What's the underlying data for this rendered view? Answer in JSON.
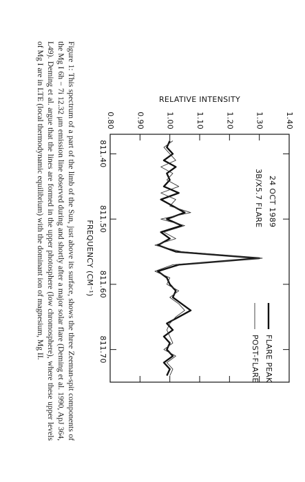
{
  "chart_data": {
    "type": "line",
    "annotations": [
      "24 OCT 1989",
      "3B/X5.7 FLARE"
    ],
    "x_label": "FREQUENCY (CM⁻¹)",
    "y_label": "RELATIVE INTENSITY",
    "x": [
      811.38,
      811.39,
      811.4,
      811.41,
      811.42,
      811.43,
      811.44,
      811.45,
      811.46,
      811.47,
      811.48,
      811.49,
      811.5,
      811.51,
      811.52,
      811.53,
      811.54,
      811.55,
      811.56,
      811.57,
      811.58,
      811.59,
      811.6,
      811.61,
      811.62,
      811.63,
      811.64,
      811.65,
      811.66,
      811.67,
      811.68,
      811.69,
      811.7,
      811.71,
      811.72,
      811.73,
      811.74
    ],
    "series": [
      {
        "name": "FLARE PEAK",
        "color": "#111111",
        "linewidth": 2.4,
        "values": [
          1.0,
          0.99,
          1.01,
          0.98,
          1.02,
          0.99,
          1.0,
          0.98,
          1.03,
          0.97,
          1.01,
          1.05,
          0.99,
          1.04,
          0.97,
          1.0,
          0.96,
          1.02,
          1.3,
          1.03,
          0.96,
          0.99,
          1.0,
          1.02,
          1.01,
          1.04,
          1.07,
          1.03,
          0.99,
          1.01,
          0.98,
          1.0,
          0.99,
          1.01,
          0.98,
          1.0,
          0.99
        ]
      },
      {
        "name": "POST-FLARE",
        "color": "#333333",
        "linewidth": 0.9,
        "values": [
          1.01,
          0.98,
          1.0,
          1.02,
          0.97,
          1.01,
          0.99,
          1.03,
          0.97,
          1.02,
          1.0,
          1.07,
          0.97,
          1.05,
          0.98,
          1.02,
          0.95,
          1.04,
          1.31,
          1.01,
          0.95,
          1.0,
          0.99,
          1.03,
          1.0,
          1.03,
          1.05,
          1.02,
          1.0,
          0.99,
          1.0,
          1.01,
          0.98,
          1.02,
          0.99,
          1.01,
          1.0
        ]
      }
    ],
    "xlim": [
      811.37,
      811.75
    ],
    "xticks": [
      {
        "value": 811.4,
        "label": "811.40"
      },
      {
        "value": 811.5,
        "label": "811.50"
      },
      {
        "value": 811.6,
        "label": "811.60"
      },
      {
        "value": 811.7,
        "label": "811.70"
      }
    ],
    "ylim": [
      0.8,
      1.4
    ],
    "yticks": [
      {
        "value": 0.8,
        "label": "0.80"
      },
      {
        "value": 0.9,
        "label": "0.90"
      },
      {
        "value": 1.0,
        "label": "1.00"
      },
      {
        "value": 1.1,
        "label": "1.10"
      },
      {
        "value": 1.2,
        "label": "1.20"
      },
      {
        "value": 1.3,
        "label": "1.30"
      },
      {
        "value": 1.4,
        "label": "1.40"
      }
    ],
    "legend": "upper right",
    "grid": false
  },
  "caption": "Figure 1: This spectrum of a part of the limb of the Sun, just above its surface, shows the three Zeeman-spit components of the Mg I 6h − 7i 12.32 μm emission line observed during and shortly after a major solar flare (Deming et al. 1990, ApJ 364, L49). Deming et al. argue that the lines are formed in the upper photosphere (low chromosphere), where these upper levels of Mg I are in LTE (local thermodynamic equilibrium) with the dominant ion of magnesium, Mg II."
}
